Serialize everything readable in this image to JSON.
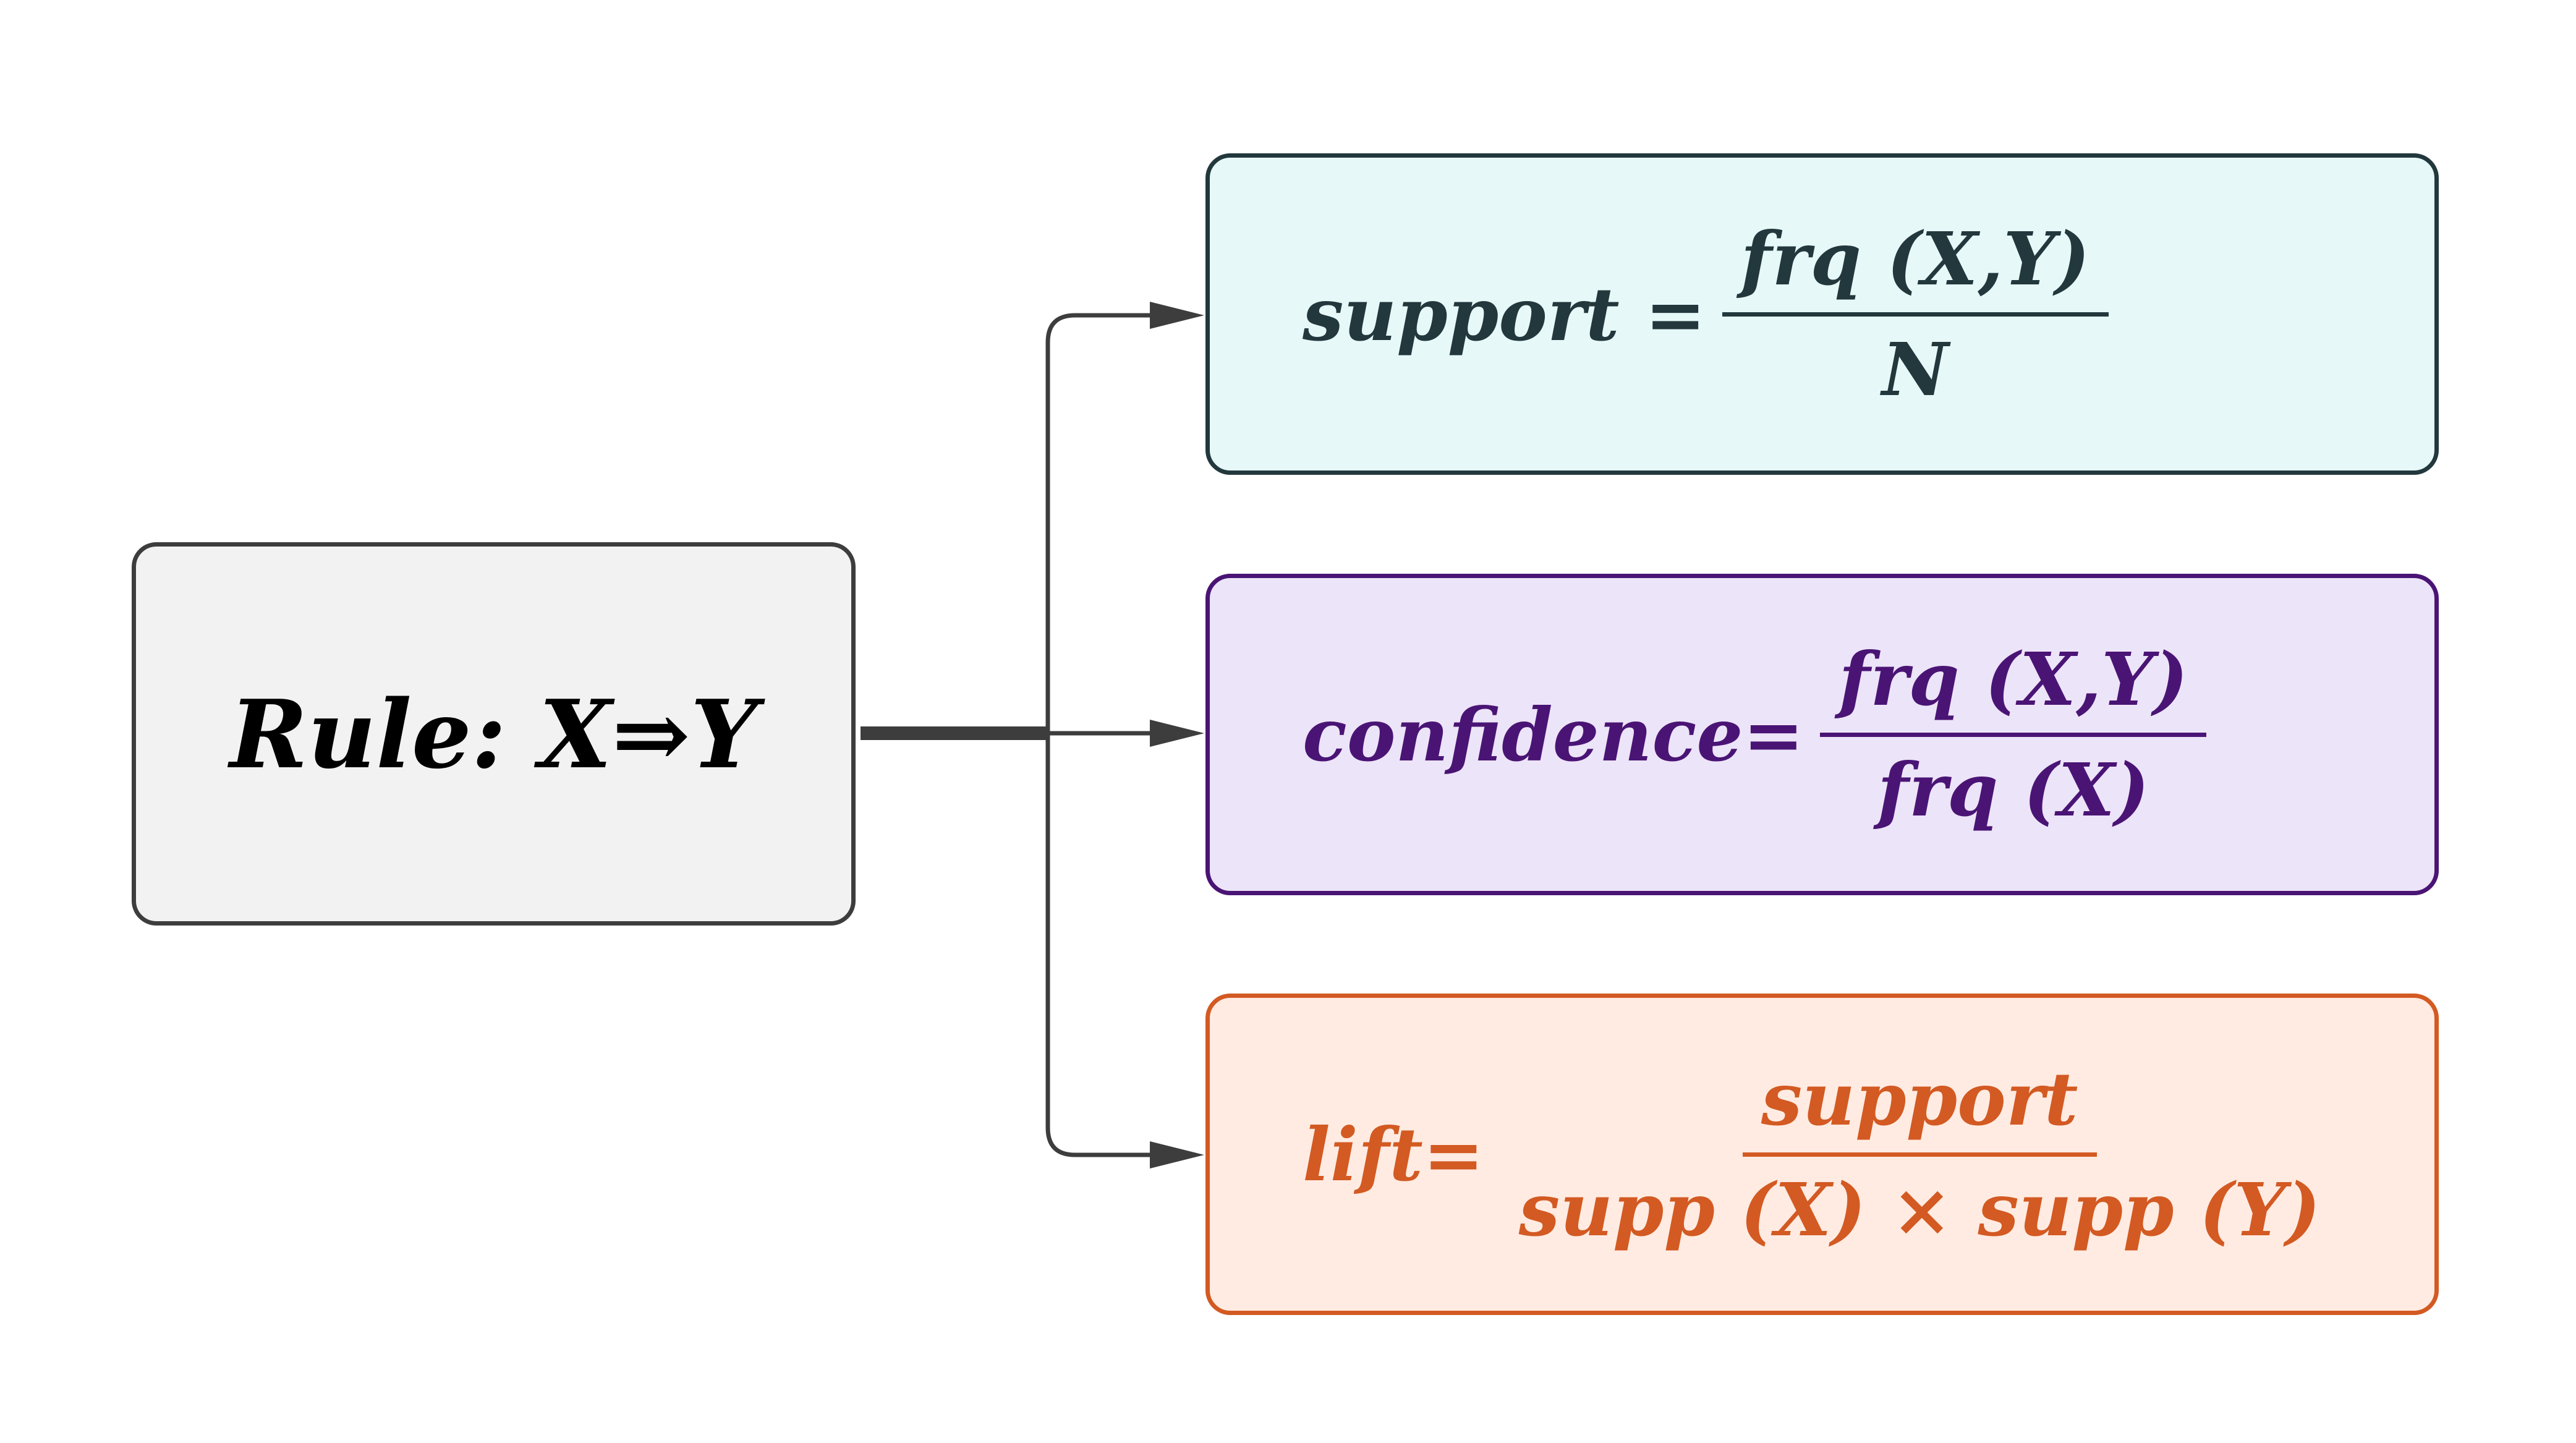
{
  "rule": {
    "label": "Rule: X⇒Y"
  },
  "metrics": [
    {
      "name": "support",
      "lhs": "support =",
      "numerator": "frq (X,Y)",
      "denominator": "N",
      "border_color": "#22383d",
      "fill_color": "#e7f8f8"
    },
    {
      "name": "confidence",
      "lhs": "confidence=",
      "numerator": "frq (X,Y)",
      "denominator": "frq (X)",
      "border_color": "#4a1475",
      "fill_color": "#ece4f8"
    },
    {
      "name": "lift",
      "lhs": "lift=",
      "numerator": "support",
      "denominator": "supp (X) × supp (Y)",
      "border_color": "#d35a22",
      "fill_color": "#ffebe2"
    }
  ],
  "connector_color": "#3d3d3d"
}
